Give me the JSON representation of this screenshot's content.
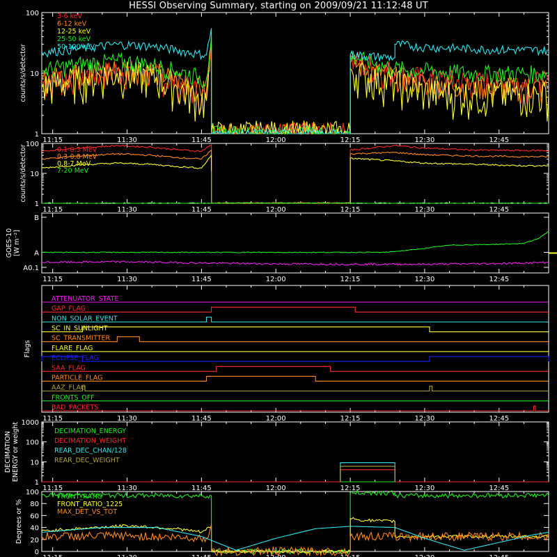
{
  "title": "HESSI Observing Summary, starting on 2009/09/21 11:12:48 UT",
  "colors": {
    "white": "#ffffff",
    "red": "#ff2a2a",
    "orange": "#ff8a1a",
    "yellow": "#ffff33",
    "green": "#22ee22",
    "cyan": "#33e5ee",
    "magenta": "#ee22ee",
    "blue": "#1a22ff",
    "olive": "#b0a040"
  },
  "time_axis": {
    "start": "11:12:48",
    "end": "12:55:00",
    "tick_labels": [
      "11:15",
      "11:30",
      "11:45",
      "12:00",
      "12:15",
      "12:30",
      "12:45"
    ],
    "tick_times": [
      "11:15",
      "11:30",
      "11:45",
      "12:00",
      "12:15",
      "12:30",
      "12:45"
    ]
  },
  "chart_data": [
    {
      "type": "line",
      "panel": "hxr",
      "ylabel": "counts/s/detector",
      "ylog": true,
      "ylim": [
        1,
        100
      ],
      "ytick_labels": [
        "1",
        "10",
        "100"
      ],
      "ytick_values": [
        1,
        10,
        100
      ],
      "series": [
        {
          "name": "3-6 keV",
          "color": "red",
          "x": [
            "11:12:48",
            "11:20",
            "11:28",
            "11:35",
            "11:40",
            "11:44",
            "11:46",
            "11:47",
            "11:47",
            "12:15",
            "12:15",
            "12:18",
            "12:24",
            "12:30",
            "12:40",
            "12:50",
            "12:55"
          ],
          "y": [
            7,
            9,
            11,
            10,
            7,
            5,
            4,
            30,
            1,
            1,
            17,
            14,
            10,
            8,
            7,
            7,
            7
          ]
        },
        {
          "name": "6-12 keV",
          "color": "orange",
          "x": [
            "11:12:48",
            "11:20",
            "11:28",
            "11:35",
            "11:40",
            "11:44",
            "11:46",
            "11:47",
            "11:47",
            "12:15",
            "12:15",
            "12:18",
            "12:24",
            "12:30",
            "12:40",
            "12:50",
            "12:55"
          ],
          "y": [
            8,
            10,
            12,
            11,
            8,
            6,
            5,
            35,
            1,
            1,
            15,
            12,
            9,
            7,
            6,
            6,
            6
          ]
        },
        {
          "name": "12-25 keV",
          "color": "yellow",
          "x": [
            "11:12:48",
            "11:20",
            "11:28",
            "11:35",
            "11:40",
            "11:44",
            "11:46",
            "11:47",
            "11:47",
            "12:15",
            "12:15",
            "12:18",
            "12:24",
            "12:30",
            "12:40",
            "12:50",
            "12:55"
          ],
          "y": [
            6,
            8,
            10,
            9,
            6,
            4,
            3.5,
            28,
            1,
            1,
            12,
            9,
            7,
            5,
            4.5,
            4.5,
            4.5
          ]
        },
        {
          "name": "25-50 keV",
          "color": "green",
          "x": [
            "11:12:48",
            "11:20",
            "11:28",
            "11:35",
            "11:40",
            "11:44",
            "11:46",
            "11:47",
            "11:47",
            "12:15",
            "12:15",
            "12:18",
            "12:24",
            "12:30",
            "12:40",
            "12:50",
            "12:55"
          ],
          "y": [
            11,
            14,
            16,
            14,
            11,
            9,
            8,
            40,
            1,
            1,
            20,
            16,
            12,
            11,
            10,
            10,
            10
          ]
        },
        {
          "name": "50-100 keV",
          "color": "cyan",
          "x": [
            "11:12:48",
            "11:20",
            "11:28",
            "11:35",
            "11:40",
            "11:44",
            "11:46",
            "11:47",
            "11:47",
            "12:15",
            "12:15",
            "12:24",
            "12:24",
            "12:30",
            "12:40",
            "12:50",
            "12:55"
          ],
          "y": [
            22,
            25,
            30,
            28,
            24,
            21,
            20,
            55,
            1,
            1,
            20,
            18,
            30,
            27,
            25,
            24,
            24
          ]
        }
      ]
    },
    {
      "type": "line",
      "panel": "gamma",
      "ylabel": "counts/s/detector",
      "ylog": true,
      "ylim": [
        1,
        100
      ],
      "ytick_labels": [
        "1",
        "10",
        "100"
      ],
      "ytick_values": [
        1,
        10,
        100
      ],
      "series": [
        {
          "name": "0.1-0.3 MeV",
          "color": "red",
          "x": [
            "11:12:48",
            "11:20",
            "11:28",
            "11:35",
            "11:40",
            "11:45",
            "11:47",
            "11:47",
            "12:15",
            "12:15",
            "12:24",
            "12:30",
            "12:40",
            "12:50",
            "12:55"
          ],
          "y": [
            55,
            70,
            85,
            75,
            62,
            55,
            90,
            1,
            1,
            60,
            85,
            70,
            60,
            58,
            58
          ]
        },
        {
          "name": "0.3-0.8 MeV",
          "color": "orange",
          "x": [
            "11:12:48",
            "11:20",
            "11:28",
            "11:35",
            "11:40",
            "11:45",
            "11:47",
            "11:47",
            "12:15",
            "12:15",
            "12:24",
            "12:30",
            "12:40",
            "12:50",
            "12:55"
          ],
          "y": [
            30,
            38,
            45,
            40,
            34,
            30,
            60,
            1,
            1,
            45,
            50,
            42,
            38,
            36,
            36
          ]
        },
        {
          "name": "0.8-7 MeV",
          "color": "yellow",
          "x": [
            "11:12:48",
            "11:20",
            "11:28",
            "11:35",
            "11:40",
            "11:45",
            "11:47",
            "11:47",
            "12:15",
            "12:15",
            "12:24",
            "12:30",
            "12:40",
            "12:50",
            "12:55"
          ],
          "y": [
            15,
            19,
            22,
            20,
            17,
            15,
            40,
            1,
            1,
            32,
            26,
            22,
            20,
            18,
            18
          ]
        },
        {
          "name": "7-20 MeV",
          "color": "green",
          "x": [
            "11:12:48",
            "11:47",
            "11:47",
            "11:47",
            "12:55"
          ],
          "y": [
            1,
            1,
            12,
            1,
            1
          ]
        }
      ]
    },
    {
      "type": "line",
      "panel": "goes",
      "ylabel_lines": [
        "GOES-10",
        "[W m⁻²]"
      ],
      "ytick_labels": [
        "B",
        "A",
        "A0.1"
      ],
      "series": [
        {
          "name": "",
          "color": "green",
          "x": [
            "11:12:48",
            "12:22",
            "12:28",
            "12:35",
            "12:45",
            "12:50",
            "12:53",
            "12:55"
          ],
          "y": [
            1e-08,
            1e-08,
            1.2e-08,
            1.6e-08,
            1.7e-08,
            1.8e-08,
            2.5e-08,
            4e-08
          ]
        },
        {
          "name": "",
          "color": "magenta",
          "x": [
            "11:12:48",
            "11:30",
            "11:45",
            "12:00",
            "12:15",
            "12:30",
            "12:45",
            "12:55"
          ],
          "y": [
            5.2e-09,
            5.4e-09,
            5e-09,
            4.7e-09,
            4.6e-09,
            4.6e-09,
            4.8e-09,
            5.2e-09
          ]
        }
      ]
    },
    {
      "type": "line",
      "panel": "flags",
      "ylabel": "Flags",
      "flags": [
        {
          "name": "ATTENUATOR_STATE",
          "color": "magenta",
          "high": []
        },
        {
          "name": "GAP_FLAG",
          "color": "red",
          "high": [
            [
              "11:47",
              "12:16"
            ]
          ]
        },
        {
          "name": "NON_SOLAR_EVENT",
          "color": "cyan",
          "high": [
            [
              "11:46",
              "11:47"
            ]
          ]
        },
        {
          "name": "SC_IN_SUNLIGHT",
          "color": "yellow",
          "high": [
            [
              "11:21",
              "12:31"
            ]
          ]
        },
        {
          "name": "SC_TRANSMITTER",
          "color": "orange",
          "high": [
            [
              "11:28",
              "11:32:30"
            ]
          ]
        },
        {
          "name": "FLARE_FLAG",
          "color": "yellow",
          "high": []
        },
        {
          "name": "ECLIPSE_FLAG",
          "color": "blue",
          "high": [
            [
              "11:12:48",
              "11:21"
            ],
            [
              "12:31",
              "12:55"
            ]
          ]
        },
        {
          "name": "SAA_FLAG",
          "color": "red",
          "high": [
            [
              "11:48",
              "12:11"
            ]
          ]
        },
        {
          "name": "PARTICLE_FLAG",
          "color": "orange",
          "high": [
            [
              "11:46",
              "12:08"
            ]
          ]
        },
        {
          "name": "AAZ_FLAG",
          "color": "olive",
          "high": [
            [
              "11:21",
              "11:21:30"
            ],
            [
              "12:31",
              "12:31:30"
            ]
          ]
        },
        {
          "name": "FRONTS_OFF",
          "color": "green",
          "high": []
        },
        {
          "name": "BAD_PACKETS",
          "color": "red",
          "high": [
            [
              "12:52",
              "12:52:20"
            ]
          ]
        }
      ]
    },
    {
      "type": "line",
      "panel": "decimation",
      "ylabel_lines": [
        "DECIMATION",
        "ENERGY or weight"
      ],
      "ylog": true,
      "ylim": [
        1,
        1000
      ],
      "ytick_labels": [
        "1",
        "10",
        "100",
        "1000"
      ],
      "ytick_values": [
        1,
        10,
        100,
        1000
      ],
      "series": [
        {
          "name": "DECIMATION_ENERGY",
          "color": "green",
          "x": [
            "11:12:48",
            "12:55"
          ],
          "y": [
            1,
            1
          ]
        },
        {
          "name": "DECIMATION_WEIGHT",
          "color": "red",
          "x": [
            "11:12:48",
            "12:13",
            "12:13",
            "12:24",
            "12:24",
            "12:55"
          ],
          "y": [
            1,
            1,
            4,
            4,
            1,
            1
          ]
        },
        {
          "name": "REAR_DEC_CHAN/128",
          "color": "cyan",
          "x": [
            "12:13",
            "12:13",
            "12:24",
            "12:24"
          ],
          "y": [
            1,
            9,
            9,
            1
          ]
        },
        {
          "name": "REAR_DEC_WEIGHT",
          "color": "olive",
          "x": [
            "12:13",
            "12:13",
            "12:24",
            "12:24"
          ],
          "y": [
            1,
            6,
            6,
            1
          ]
        }
      ]
    },
    {
      "type": "line",
      "panel": "ratios",
      "ylabel": "Degrees or %",
      "ylim": [
        0,
        100
      ],
      "ytick_labels": [
        "0",
        "20",
        "40",
        "60",
        "80",
        "100"
      ],
      "ytick_values": [
        0,
        20,
        40,
        60,
        80,
        100
      ],
      "series": [
        {
          "name": "FRONT_RATIO",
          "color": "green",
          "x": [
            "11:12:48",
            "11:47",
            "11:47",
            "12:15",
            "12:15",
            "12:24",
            "12:24",
            "12:55"
          ],
          "y": [
            94,
            93,
            0,
            0,
            98,
            98,
            93,
            94
          ]
        },
        {
          "name": "FRONT_RATIO_1225",
          "color": "yellow",
          "x": [
            "11:12:48",
            "11:20",
            "11:30",
            "11:40",
            "11:45",
            "11:47",
            "11:47",
            "12:15",
            "12:15",
            "12:18",
            "12:24",
            "12:24",
            "12:55"
          ],
          "y": [
            34,
            38,
            43,
            38,
            32,
            42,
            0,
            0,
            55,
            52,
            50,
            25,
            25
          ]
        },
        {
          "name": "MAX_DET_VS_TOT",
          "color": "orange",
          "x": [
            "11:12:48",
            "11:30",
            "11:46",
            "11:47",
            "11:47",
            "12:15",
            "12:15",
            "12:55"
          ],
          "y": [
            25,
            26,
            22,
            45,
            0,
            0,
            25,
            25
          ]
        },
        {
          "name": "",
          "color": "cyan",
          "x": [
            "11:12:48",
            "11:25",
            "11:36",
            "11:45",
            "11:52",
            "12:00",
            "12:08",
            "12:15",
            "12:24",
            "12:30",
            "12:38",
            "12:45",
            "12:52",
            "12:55"
          ],
          "y": [
            32,
            40,
            40,
            25,
            2,
            22,
            38,
            42,
            40,
            22,
            2,
            15,
            28,
            32
          ]
        }
      ]
    }
  ]
}
